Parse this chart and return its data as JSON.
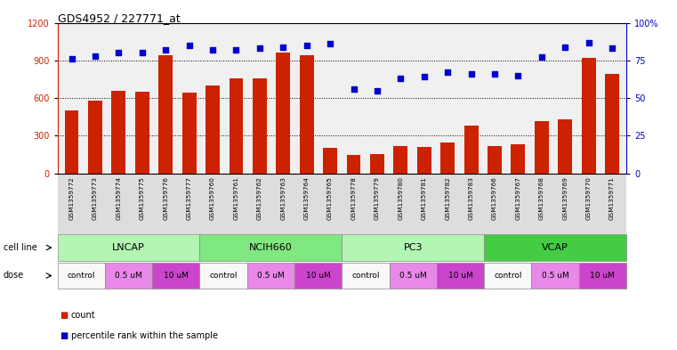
{
  "title": "GDS4952 / 227771_at",
  "samples": [
    "GSM1359772",
    "GSM1359773",
    "GSM1359774",
    "GSM1359775",
    "GSM1359776",
    "GSM1359777",
    "GSM1359760",
    "GSM1359761",
    "GSM1359762",
    "GSM1359763",
    "GSM1359764",
    "GSM1359765",
    "GSM1359778",
    "GSM1359779",
    "GSM1359780",
    "GSM1359781",
    "GSM1359782",
    "GSM1359783",
    "GSM1359766",
    "GSM1359767",
    "GSM1359768",
    "GSM1359769",
    "GSM1359770",
    "GSM1359771"
  ],
  "counts": [
    500,
    580,
    660,
    650,
    940,
    640,
    700,
    760,
    755,
    960,
    940,
    200,
    145,
    155,
    220,
    210,
    245,
    380,
    215,
    230,
    415,
    430,
    920,
    790
  ],
  "percentile_ranks": [
    76,
    78,
    80,
    80,
    82,
    85,
    82,
    82,
    83,
    84,
    85,
    86,
    56,
    55,
    63,
    64,
    67,
    66,
    66,
    65,
    77,
    84,
    87,
    83
  ],
  "cell_lines": [
    {
      "label": "LNCAP",
      "start": 0,
      "end": 6,
      "color": "#b3f5b3"
    },
    {
      "label": "NCIH660",
      "start": 6,
      "end": 12,
      "color": "#80e880"
    },
    {
      "label": "PC3",
      "start": 12,
      "end": 18,
      "color": "#b3f5b3"
    },
    {
      "label": "VCAP",
      "start": 18,
      "end": 24,
      "color": "#44cc44"
    }
  ],
  "dose_groups": [
    {
      "label": "control",
      "start": 0,
      "end": 2,
      "color": "#f8f8f8"
    },
    {
      "label": "0.5 uM",
      "start": 2,
      "end": 4,
      "color": "#e888e8"
    },
    {
      "label": "10 uM",
      "start": 4,
      "end": 6,
      "color": "#cc44cc"
    },
    {
      "label": "control",
      "start": 6,
      "end": 8,
      "color": "#f8f8f8"
    },
    {
      "label": "0.5 uM",
      "start": 8,
      "end": 10,
      "color": "#e888e8"
    },
    {
      "label": "10 uM",
      "start": 10,
      "end": 12,
      "color": "#cc44cc"
    },
    {
      "label": "control",
      "start": 12,
      "end": 14,
      "color": "#f8f8f8"
    },
    {
      "label": "0.5 uM",
      "start": 14,
      "end": 16,
      "color": "#e888e8"
    },
    {
      "label": "10 uM",
      "start": 16,
      "end": 18,
      "color": "#cc44cc"
    },
    {
      "label": "control",
      "start": 18,
      "end": 20,
      "color": "#f8f8f8"
    },
    {
      "label": "0.5 uM",
      "start": 20,
      "end": 22,
      "color": "#e888e8"
    },
    {
      "label": "10 uM",
      "start": 22,
      "end": 24,
      "color": "#cc44cc"
    }
  ],
  "ylim_left": [
    0,
    1200
  ],
  "ylim_right": [
    0,
    100
  ],
  "yticks_left": [
    0,
    300,
    600,
    900,
    1200
  ],
  "yticks_right": [
    0,
    25,
    50,
    75,
    100
  ],
  "ytick_labels_right": [
    "0",
    "25",
    "50",
    "75",
    "100%"
  ],
  "bar_color": "#cc2200",
  "dot_color": "#0000cc",
  "grid_color": "#555555",
  "plot_bg": "#f0f0f0"
}
